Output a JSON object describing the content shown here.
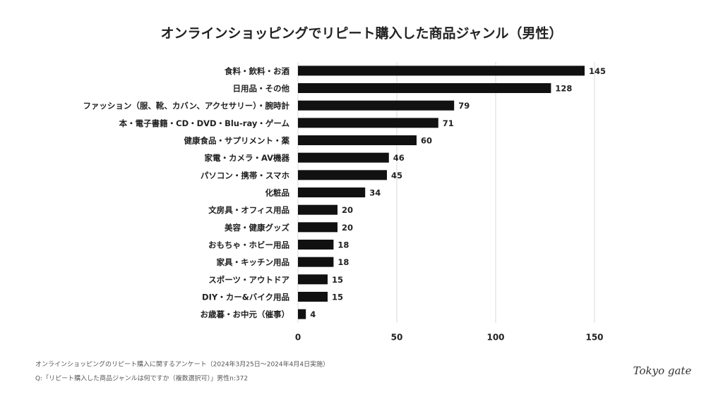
{
  "chart_data": {
    "type": "bar",
    "title": "オンラインショッピングでリピート購入した商品ジャンル（男性）",
    "categories": [
      "食料・飲料・お酒",
      "日用品・その他",
      "ファッション（服、靴、カバン、アクセサリー）・腕時計",
      "本・電子書籍・CD・DVD・Blu-ray・ゲーム",
      "健康食品・サプリメント・薬",
      "家電・カメラ・AV機器",
      "パソコン・携帯・スマホ",
      "化粧品",
      "文房具・オフィス用品",
      "美容・健康グッズ",
      "おもちゃ・ホビー用品",
      "家具・キッチン用品",
      "スポーツ・アウトドア",
      "DIY・カー&バイク用品",
      "お歳暮・お中元（催事）"
    ],
    "values": [
      145,
      128,
      79,
      71,
      60,
      46,
      45,
      34,
      20,
      20,
      18,
      18,
      15,
      15,
      4
    ],
    "color": "#111111",
    "xlim": [
      0,
      150
    ],
    "xticks": [
      0,
      50,
      100,
      150
    ],
    "grid": true,
    "footnotes": [
      "オンラインショッピングのリピート購入に関するアンケート（2024年3月25日〜2024年4月4日実施）",
      "Q:「リピート購入した商品ジャンルは何ですか（複数選択可）」男性n:372"
    ],
    "logo": "Tokyo gate"
  }
}
